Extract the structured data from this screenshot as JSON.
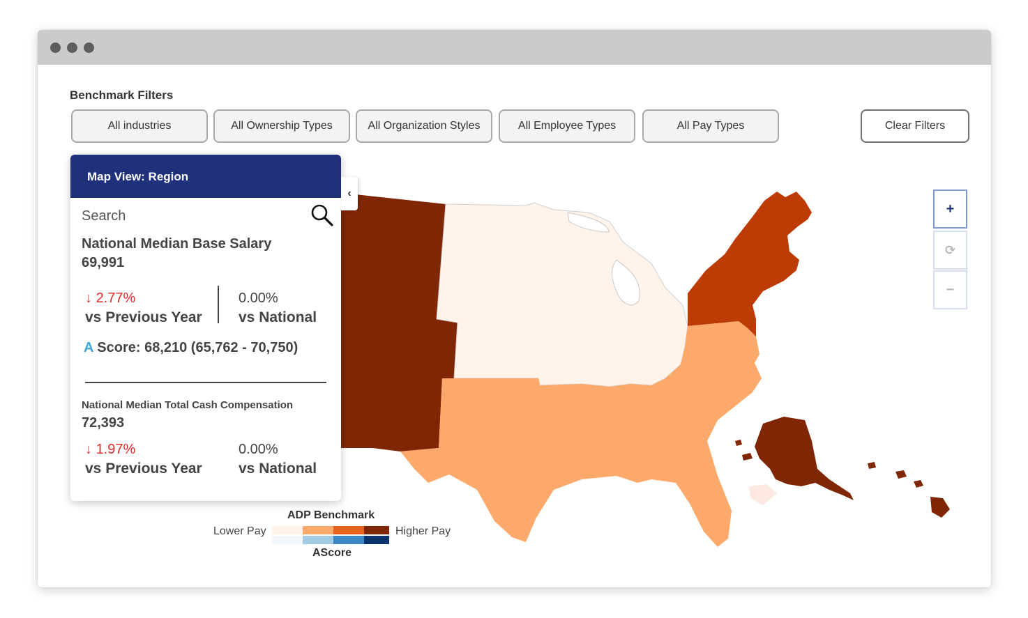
{
  "filters": {
    "title": "Benchmark Filters",
    "buttons": [
      "All industries",
      "All Ownership Types",
      "All Organization Styles",
      "All Employee Types",
      "All Pay Types"
    ],
    "clear_label": "Clear Filters"
  },
  "panel": {
    "title": "Map View: Region",
    "collapse_glyph": "‹",
    "search_label": "Search",
    "base_salary": {
      "label": "National Median Base Salary",
      "value": "69,991",
      "prev_year_pct": "2.77%",
      "prev_year_label": "vs Previous Year",
      "national_pct": "0.00%",
      "national_label": "vs National",
      "trend": "down"
    },
    "ascore": {
      "letter": "A",
      "text": "Score: 68,210 (65,762 - 70,750)"
    },
    "total_cash": {
      "label": "National Median Total Cash Compensation",
      "value": "72,393",
      "prev_year_pct": "1.97%",
      "prev_year_label": "vs Previous Year",
      "national_pct": "0.00%",
      "national_label": "vs National",
      "trend": "down"
    }
  },
  "zoom": {
    "in_glyph": "+",
    "reset_glyph": "⟳",
    "out_glyph": "−"
  },
  "legend": {
    "title": "ADP Benchmark",
    "low_label": "Lower Pay",
    "high_label": "Higher Pay",
    "ascore_label": "AScore",
    "pay_colors": [
      "#fff3ea",
      "#fda96b",
      "#e8611d",
      "#7f2704"
    ],
    "ascore_colors": [
      "#f2f7fc",
      "#a4cbe6",
      "#3b87c2",
      "#0b336b"
    ]
  },
  "map_colors": {
    "west": "#7f2704",
    "midwest": "#fff3ea",
    "northeast": "#bd3b05",
    "south": "#fda96b",
    "alaska": "#7f2704",
    "hawaii": "#7f2704"
  },
  "colors": {
    "panel_header": "#1f317a",
    "negative": "#e02a2a",
    "ascore_accent": "#3fa7d6"
  }
}
